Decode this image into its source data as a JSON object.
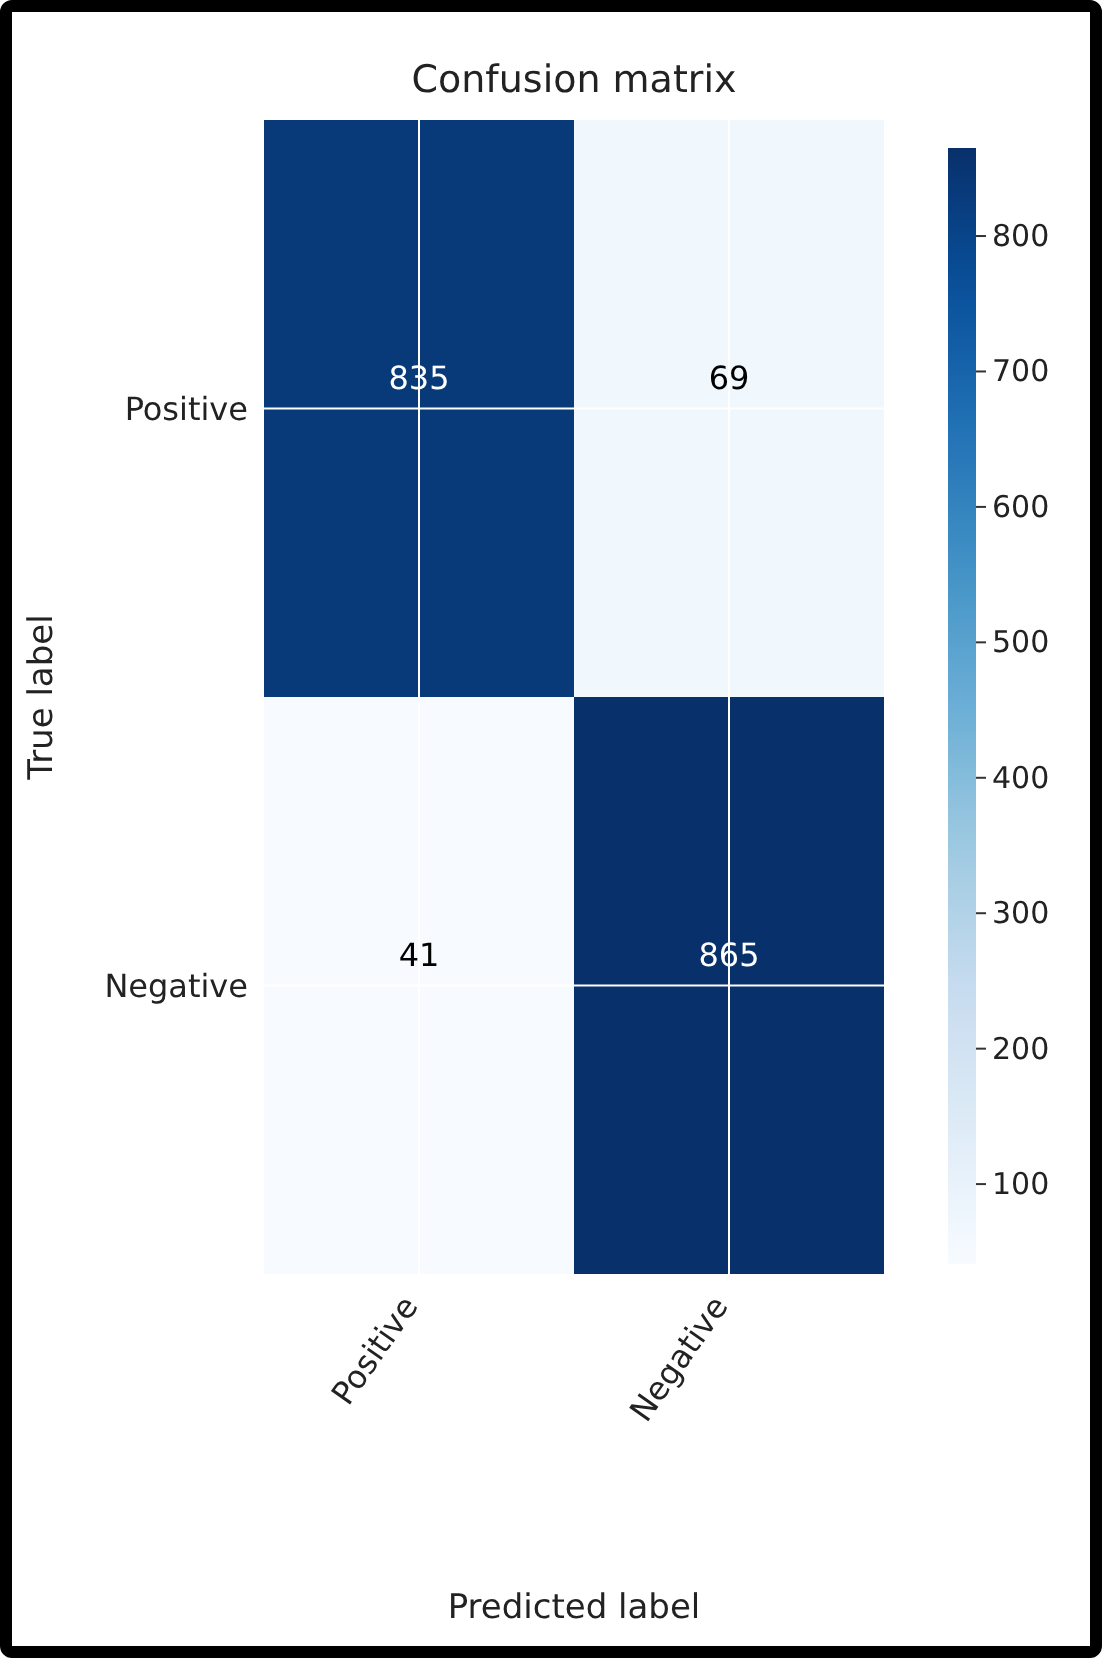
{
  "chart_data": {
    "type": "heatmap",
    "title": "Confusion matrix",
    "xlabel": "Predicted label",
    "ylabel": "True label",
    "categories": [
      "Positive",
      "Negative"
    ],
    "y_categories": [
      "Positive",
      "Negative"
    ],
    "cells": [
      [
        835,
        69
      ],
      [
        41,
        865
      ]
    ],
    "clim": [
      41,
      865
    ],
    "cticks": [
      100,
      200,
      300,
      400,
      500,
      600,
      700,
      800
    ],
    "data_labels": true,
    "grid": true
  }
}
